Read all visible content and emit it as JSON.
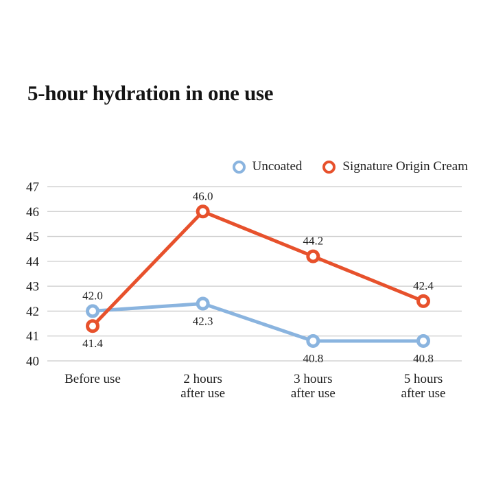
{
  "title": "5-hour hydration in one use",
  "colors": {
    "uncoated": "#8ab4df",
    "cream": "#e7512c",
    "grid": "#cbcbcb",
    "text": "#1f1f1f",
    "marker_fill": "#ffffff"
  },
  "legend": {
    "items": [
      {
        "id": "uncoated",
        "label": "Uncoated"
      },
      {
        "id": "cream",
        "label": "Signature Origin Cream"
      }
    ],
    "position": "top-right"
  },
  "chart_data": {
    "type": "line",
    "categories": [
      "Before use",
      "2 hours\nafter use",
      "3 hours\nafter use",
      "5 hours\nafter use"
    ],
    "series": [
      {
        "id": "uncoated",
        "name": "Uncoated",
        "color": "#8ab4df",
        "values": [
          42.0,
          42.3,
          40.8,
          40.8
        ],
        "value_labels": [
          "42.0",
          "42.3",
          "40.8",
          "40.8"
        ],
        "label_side": [
          "above",
          "below",
          "below",
          "below"
        ]
      },
      {
        "id": "cream",
        "name": "Signature Origin Cream",
        "color": "#e7512c",
        "values": [
          41.4,
          46.0,
          44.2,
          42.4
        ],
        "value_labels": [
          "41.4",
          "46.0",
          "44.2",
          "42.4"
        ],
        "label_side": [
          "below",
          "above",
          "above",
          "above"
        ]
      }
    ],
    "title": "5-hour hydration in one use",
    "xlabel": "",
    "ylabel": "",
    "ylim": [
      40,
      47
    ],
    "yticks": [
      "40",
      "41",
      "42",
      "43",
      "44",
      "45",
      "46",
      "47"
    ],
    "grid": true,
    "legend_position": "top-right",
    "marker": "open-circle"
  }
}
